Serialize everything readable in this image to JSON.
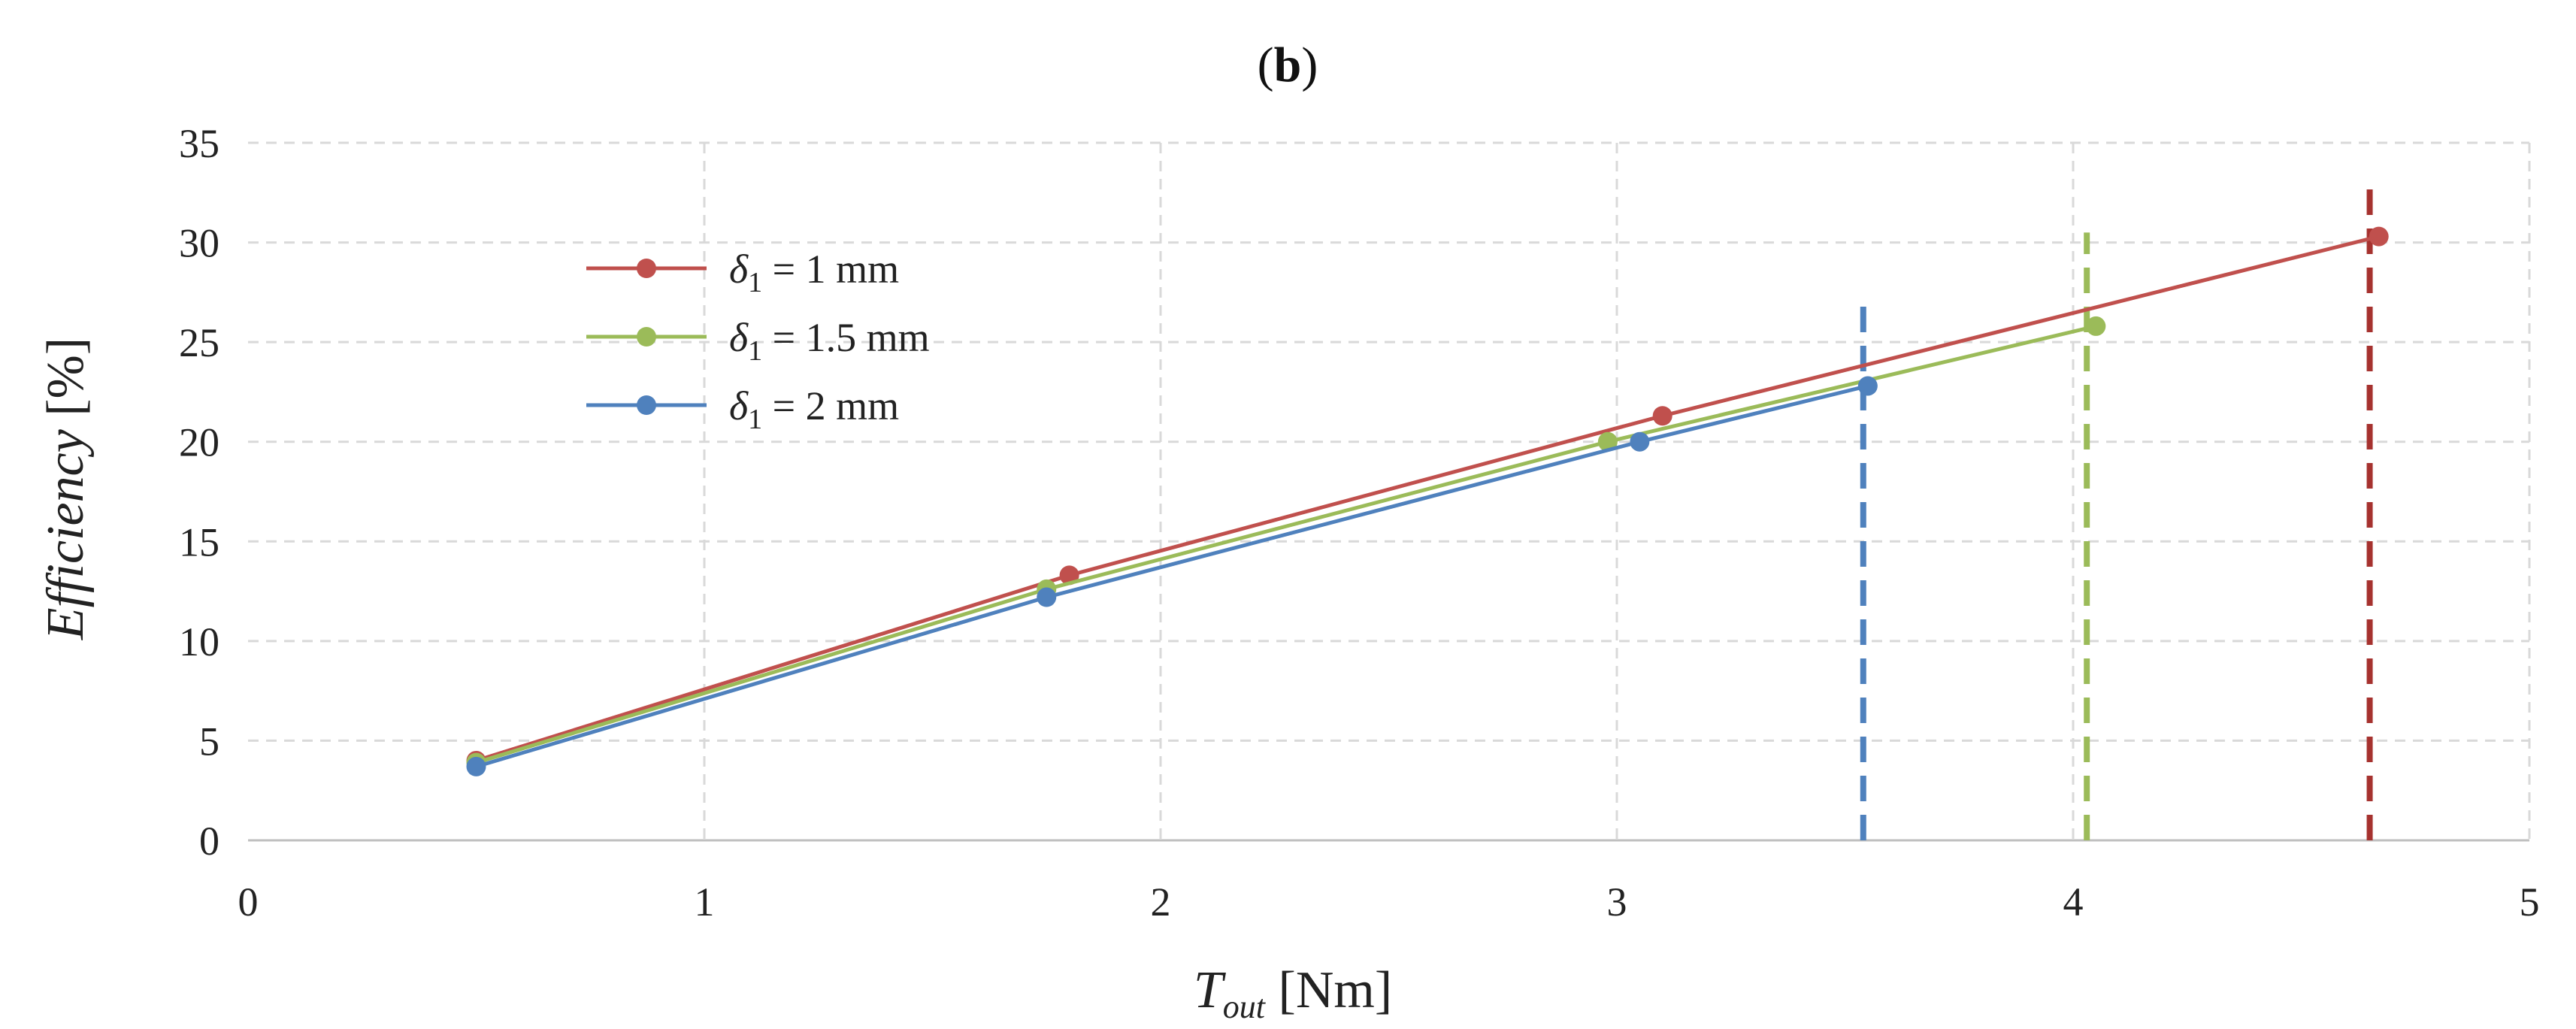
{
  "chart_data": {
    "type": "line",
    "title_open": "(",
    "title_bold": "b",
    "title_close": ")",
    "xlabel_main": "T",
    "xlabel_sub": "out",
    "xlabel_unit": " [Nm]",
    "ylabel_italic": "Efficiency",
    "ylabel_unit": " [%]",
    "xlim": [
      0,
      5
    ],
    "ylim": [
      0,
      35
    ],
    "x_ticks": [
      0,
      1,
      2,
      3,
      4,
      5
    ],
    "y_ticks": [
      0,
      5,
      10,
      15,
      20,
      25,
      30,
      35
    ],
    "grid": true,
    "legend_position": "top-left",
    "series": [
      {
        "name": "δ1 = 1 mm",
        "legend_symbol": "δ",
        "legend_sub": "1",
        "legend_rest": " = 1 mm",
        "color": "#c0504d",
        "x": [
          0.5,
          1.8,
          3.1,
          4.67
        ],
        "y": [
          4.0,
          13.3,
          21.3,
          30.3
        ],
        "limit_x": 4.65,
        "limit_color": "#a6322f",
        "limit_top": 33
      },
      {
        "name": "δ1 = 1.5 mm",
        "legend_symbol": "δ",
        "legend_sub": "1",
        "legend_rest": " = 1.5 mm",
        "color": "#9bbb59",
        "x": [
          0.5,
          1.75,
          2.98,
          4.05
        ],
        "y": [
          3.9,
          12.6,
          20.0,
          25.8
        ],
        "limit_x": 4.03,
        "limit_color": "#9bbb59",
        "limit_top": 30.5
      },
      {
        "name": "δ1 = 2 mm",
        "legend_symbol": "δ",
        "legend_sub": "1",
        "legend_rest": " = 2 mm",
        "color": "#4f81bd",
        "x": [
          0.5,
          1.75,
          3.05,
          3.55
        ],
        "y": [
          3.7,
          12.2,
          20.0,
          22.8
        ],
        "limit_x": 3.54,
        "limit_color": "#4f81bd",
        "limit_top": 26.8
      }
    ]
  }
}
